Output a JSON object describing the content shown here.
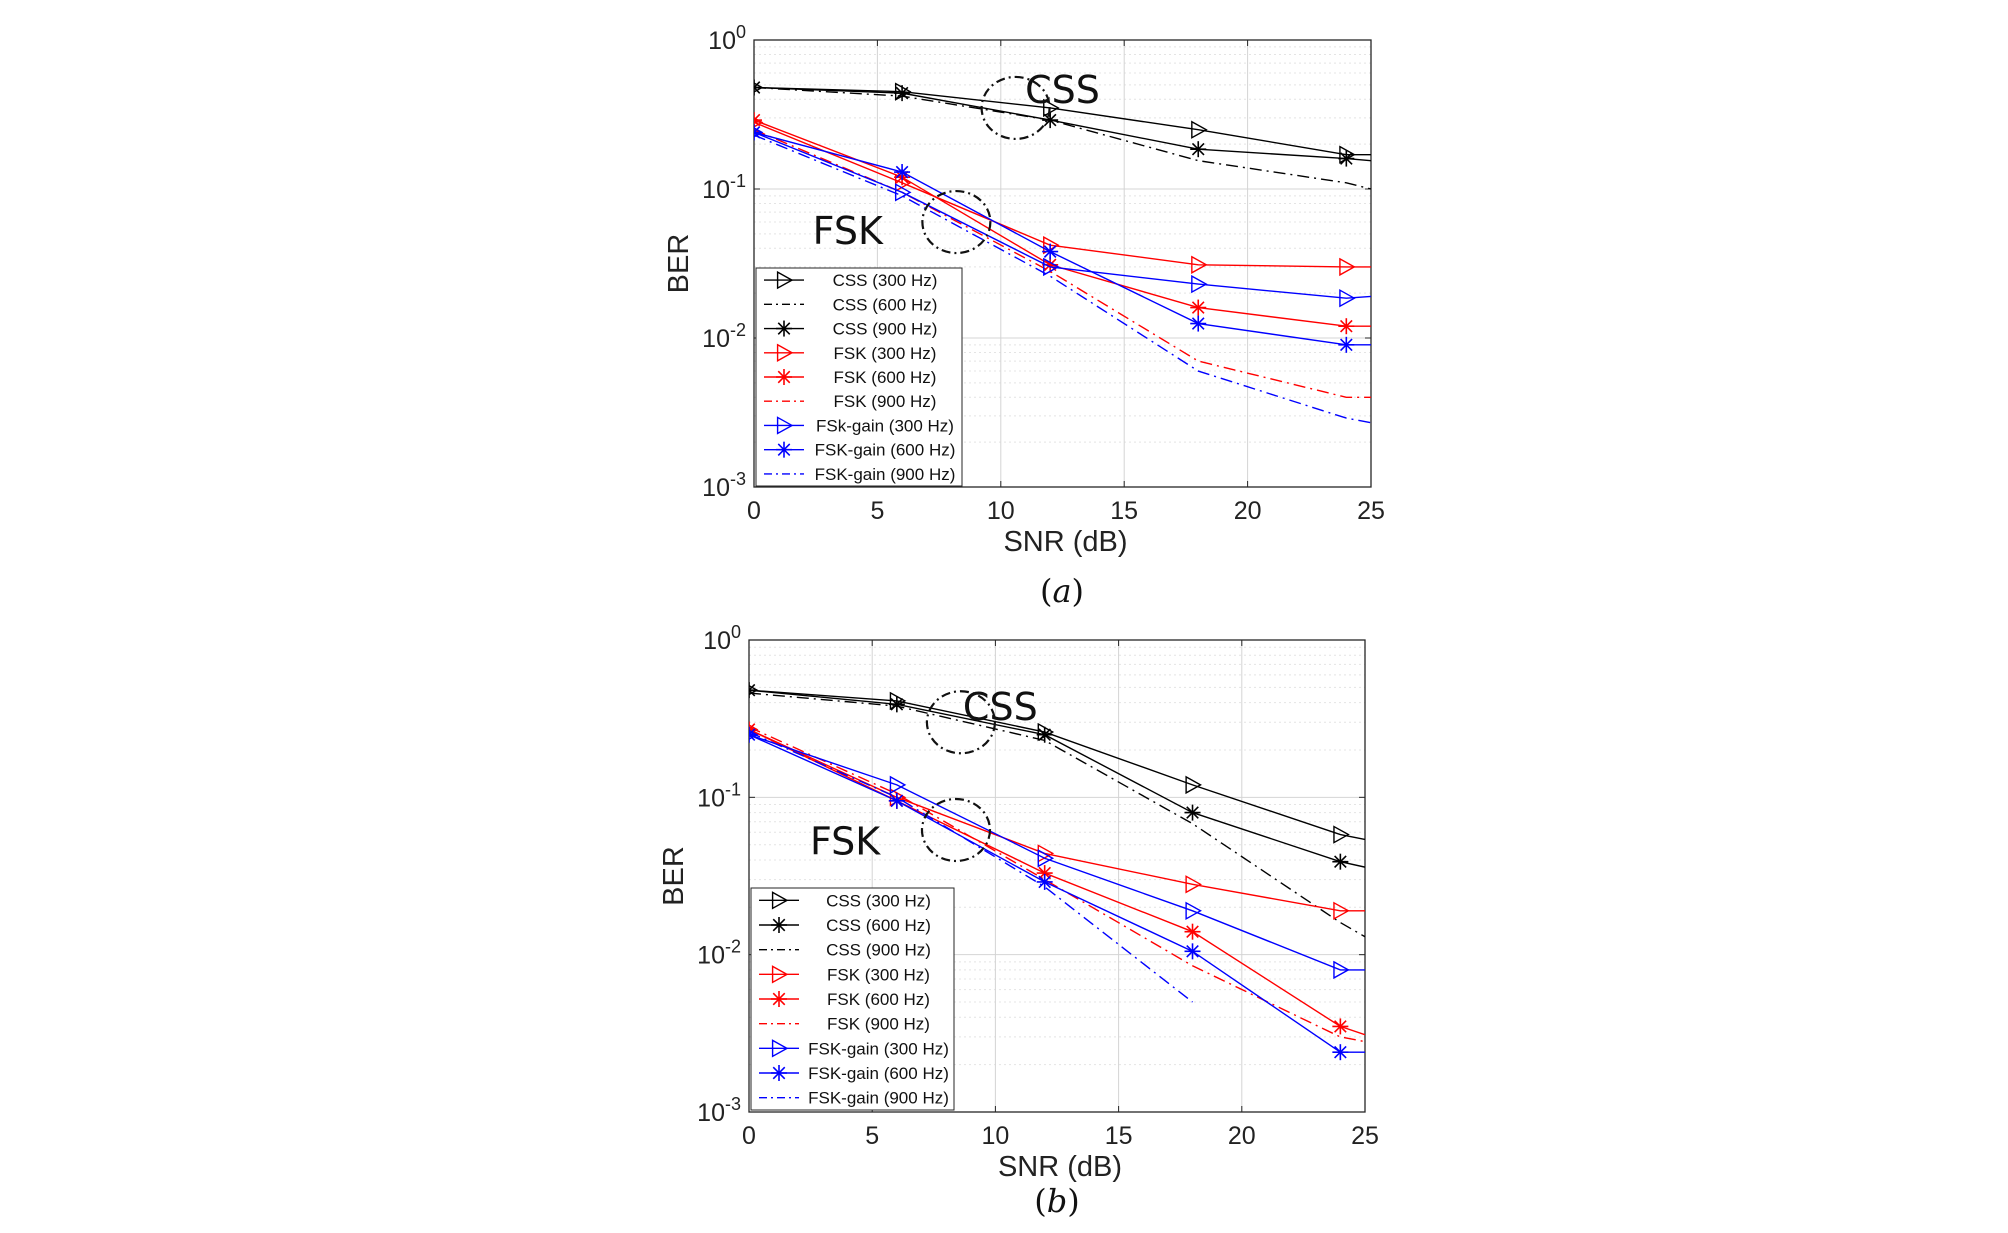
{
  "chart_data": [
    {
      "type": "line",
      "panel": "a",
      "caption_open": "(",
      "caption_letter": "a",
      "caption_close": ")",
      "xlabel": "SNR (dB)",
      "ylabel": "BER",
      "xlim": [
        0,
        25
      ],
      "ylim": [
        0.001,
        1
      ],
      "yscale": "log",
      "grid": true,
      "legend_position": "bottom-left",
      "x_ticks": [
        0,
        5,
        10,
        15,
        20,
        25
      ],
      "y_ticks": [
        {
          "base": "10",
          "exp": "0",
          "value": 1
        },
        {
          "base": "10",
          "exp": "-1",
          "value": 0.1
        },
        {
          "base": "10",
          "exp": "-2",
          "value": 0.01
        },
        {
          "base": "10",
          "exp": "-3",
          "value": 0.001
        }
      ],
      "annotations": [
        {
          "text": "CSS",
          "x": 12.5,
          "y": 0.47,
          "circle": {
            "x": 10.6,
            "y": 0.35
          }
        },
        {
          "text": "FSK",
          "x": 3.8,
          "y": 0.053,
          "circle": {
            "x": 8.2,
            "y": 0.06
          }
        }
      ],
      "series": [
        {
          "name": "CSS (300 Hz)",
          "color": "#000000",
          "dash": "solid",
          "marker": "triangle-right",
          "x": [
            0,
            6,
            12,
            18,
            24,
            25
          ],
          "y": [
            0.48,
            0.45,
            0.35,
            0.25,
            0.17,
            0.17
          ]
        },
        {
          "name": "CSS (600 Hz)",
          "color": "#000000",
          "dash": "dashdot",
          "marker": "none",
          "x": [
            0,
            6,
            12,
            18,
            24,
            25
          ],
          "y": [
            0.48,
            0.42,
            0.29,
            0.155,
            0.11,
            0.1
          ]
        },
        {
          "name": "CSS (900 Hz)",
          "color": "#000000",
          "dash": "solid",
          "marker": "star",
          "x": [
            0,
            6,
            12,
            18,
            24,
            25
          ],
          "y": [
            0.48,
            0.44,
            0.29,
            0.185,
            0.16,
            0.155
          ]
        },
        {
          "name": "FSK (300 Hz)",
          "color": "#ff0000",
          "dash": "solid",
          "marker": "triangle-right",
          "x": [
            0,
            6,
            12,
            18,
            24,
            25
          ],
          "y": [
            0.28,
            0.11,
            0.042,
            0.031,
            0.03,
            0.03
          ]
        },
        {
          "name": "FSK (600 Hz)",
          "color": "#ff0000",
          "dash": "solid",
          "marker": "star",
          "x": [
            0,
            6,
            12,
            18,
            24,
            25
          ],
          "y": [
            0.29,
            0.12,
            0.031,
            0.016,
            0.012,
            0.012
          ]
        },
        {
          "name": "FSK (900 Hz)",
          "color": "#ff0000",
          "dash": "dashdot",
          "marker": "none",
          "x": [
            0,
            6,
            12,
            18,
            24,
            25
          ],
          "y": [
            0.25,
            0.095,
            0.028,
            0.007,
            0.004,
            0.004
          ]
        },
        {
          "name": "FSk-gain (300 Hz)",
          "color": "#0000ff",
          "dash": "solid",
          "marker": "triangle-right",
          "x": [
            0,
            6,
            12,
            18,
            24,
            25
          ],
          "y": [
            0.24,
            0.095,
            0.03,
            0.023,
            0.0185,
            0.019
          ]
        },
        {
          "name": "FSK-gain (600 Hz)",
          "color": "#0000ff",
          "dash": "solid",
          "marker": "star",
          "x": [
            0,
            6,
            12,
            18,
            24,
            25
          ],
          "y": [
            0.24,
            0.13,
            0.038,
            0.0125,
            0.009,
            0.009
          ]
        },
        {
          "name": "FSK-gain (900 Hz)",
          "color": "#0000ff",
          "dash": "dashdot",
          "marker": "none",
          "x": [
            0,
            6,
            12,
            18,
            24,
            25
          ],
          "y": [
            0.23,
            0.09,
            0.026,
            0.006,
            0.0029,
            0.0027
          ]
        }
      ]
    },
    {
      "type": "line",
      "panel": "b",
      "caption_open": "(",
      "caption_letter": "b",
      "caption_close": ")",
      "xlabel": "SNR (dB)",
      "ylabel": "BER",
      "xlim": [
        0,
        25
      ],
      "ylim": [
        0.001,
        1
      ],
      "yscale": "log",
      "grid": true,
      "legend_position": "bottom-left",
      "x_ticks": [
        0,
        5,
        10,
        15,
        20,
        25
      ],
      "y_ticks": [
        {
          "base": "10",
          "exp": "0",
          "value": 1
        },
        {
          "base": "10",
          "exp": "-1",
          "value": 0.1
        },
        {
          "base": "10",
          "exp": "-2",
          "value": 0.01
        },
        {
          "base": "10",
          "exp": "-3",
          "value": 0.001
        }
      ],
      "annotations": [
        {
          "text": "CSS",
          "x": 10.2,
          "y": 0.38,
          "circle": {
            "x": 8.6,
            "y": 0.3
          }
        },
        {
          "text": "FSK",
          "x": 3.9,
          "y": 0.053,
          "circle": {
            "x": 8.4,
            "y": 0.062
          }
        }
      ],
      "series": [
        {
          "name": "CSS (300 Hz)",
          "color": "#000000",
          "dash": "solid",
          "marker": "triangle-right",
          "x": [
            0,
            6,
            12,
            18,
            24,
            25
          ],
          "y": [
            0.48,
            0.41,
            0.26,
            0.12,
            0.058,
            0.054
          ]
        },
        {
          "name": "CSS (600 Hz)",
          "color": "#000000",
          "dash": "solid",
          "marker": "star",
          "x": [
            0,
            6,
            12,
            18,
            24,
            25
          ],
          "y": [
            0.48,
            0.39,
            0.25,
            0.08,
            0.039,
            0.036
          ]
        },
        {
          "name": "CSS (900 Hz)",
          "color": "#000000",
          "dash": "dashdot",
          "marker": "none",
          "x": [
            0,
            6,
            12,
            18,
            24,
            25
          ],
          "y": [
            0.46,
            0.38,
            0.23,
            0.068,
            0.016,
            0.013
          ]
        },
        {
          "name": "FSK (300 Hz)",
          "color": "#ff0000",
          "dash": "solid",
          "marker": "triangle-right",
          "x": [
            0,
            6,
            12,
            18,
            24,
            25
          ],
          "y": [
            0.27,
            0.1,
            0.044,
            0.028,
            0.019,
            0.019
          ]
        },
        {
          "name": "FSK (600 Hz)",
          "color": "#ff0000",
          "dash": "solid",
          "marker": "star",
          "x": [
            0,
            6,
            12,
            18,
            24,
            25
          ],
          "y": [
            0.27,
            0.095,
            0.033,
            0.014,
            0.0035,
            0.0031
          ]
        },
        {
          "name": "FSK (900 Hz)",
          "color": "#ff0000",
          "dash": "dashdot",
          "marker": "none",
          "x": [
            0,
            6,
            12,
            18,
            24,
            25
          ],
          "y": [
            0.28,
            0.105,
            0.03,
            0.0085,
            0.003,
            0.0028
          ]
        },
        {
          "name": "FSK-gain (300 Hz)",
          "color": "#0000ff",
          "dash": "solid",
          "marker": "triangle-right",
          "x": [
            0,
            6,
            12,
            18,
            24,
            25
          ],
          "y": [
            0.25,
            0.12,
            0.041,
            0.019,
            0.008,
            0.008
          ]
        },
        {
          "name": "FSK-gain (600 Hz)",
          "color": "#0000ff",
          "dash": "solid",
          "marker": "star",
          "x": [
            0,
            6,
            12,
            18,
            24,
            25
          ],
          "y": [
            0.25,
            0.095,
            0.029,
            0.0105,
            0.0024,
            0.0024
          ]
        },
        {
          "name": "FSK-gain (900 Hz)",
          "color": "#0000ff",
          "dash": "dashdot",
          "marker": "none",
          "x": [
            0,
            6,
            12,
            18
          ],
          "y": [
            0.26,
            0.1,
            0.027,
            0.005
          ]
        }
      ]
    }
  ]
}
